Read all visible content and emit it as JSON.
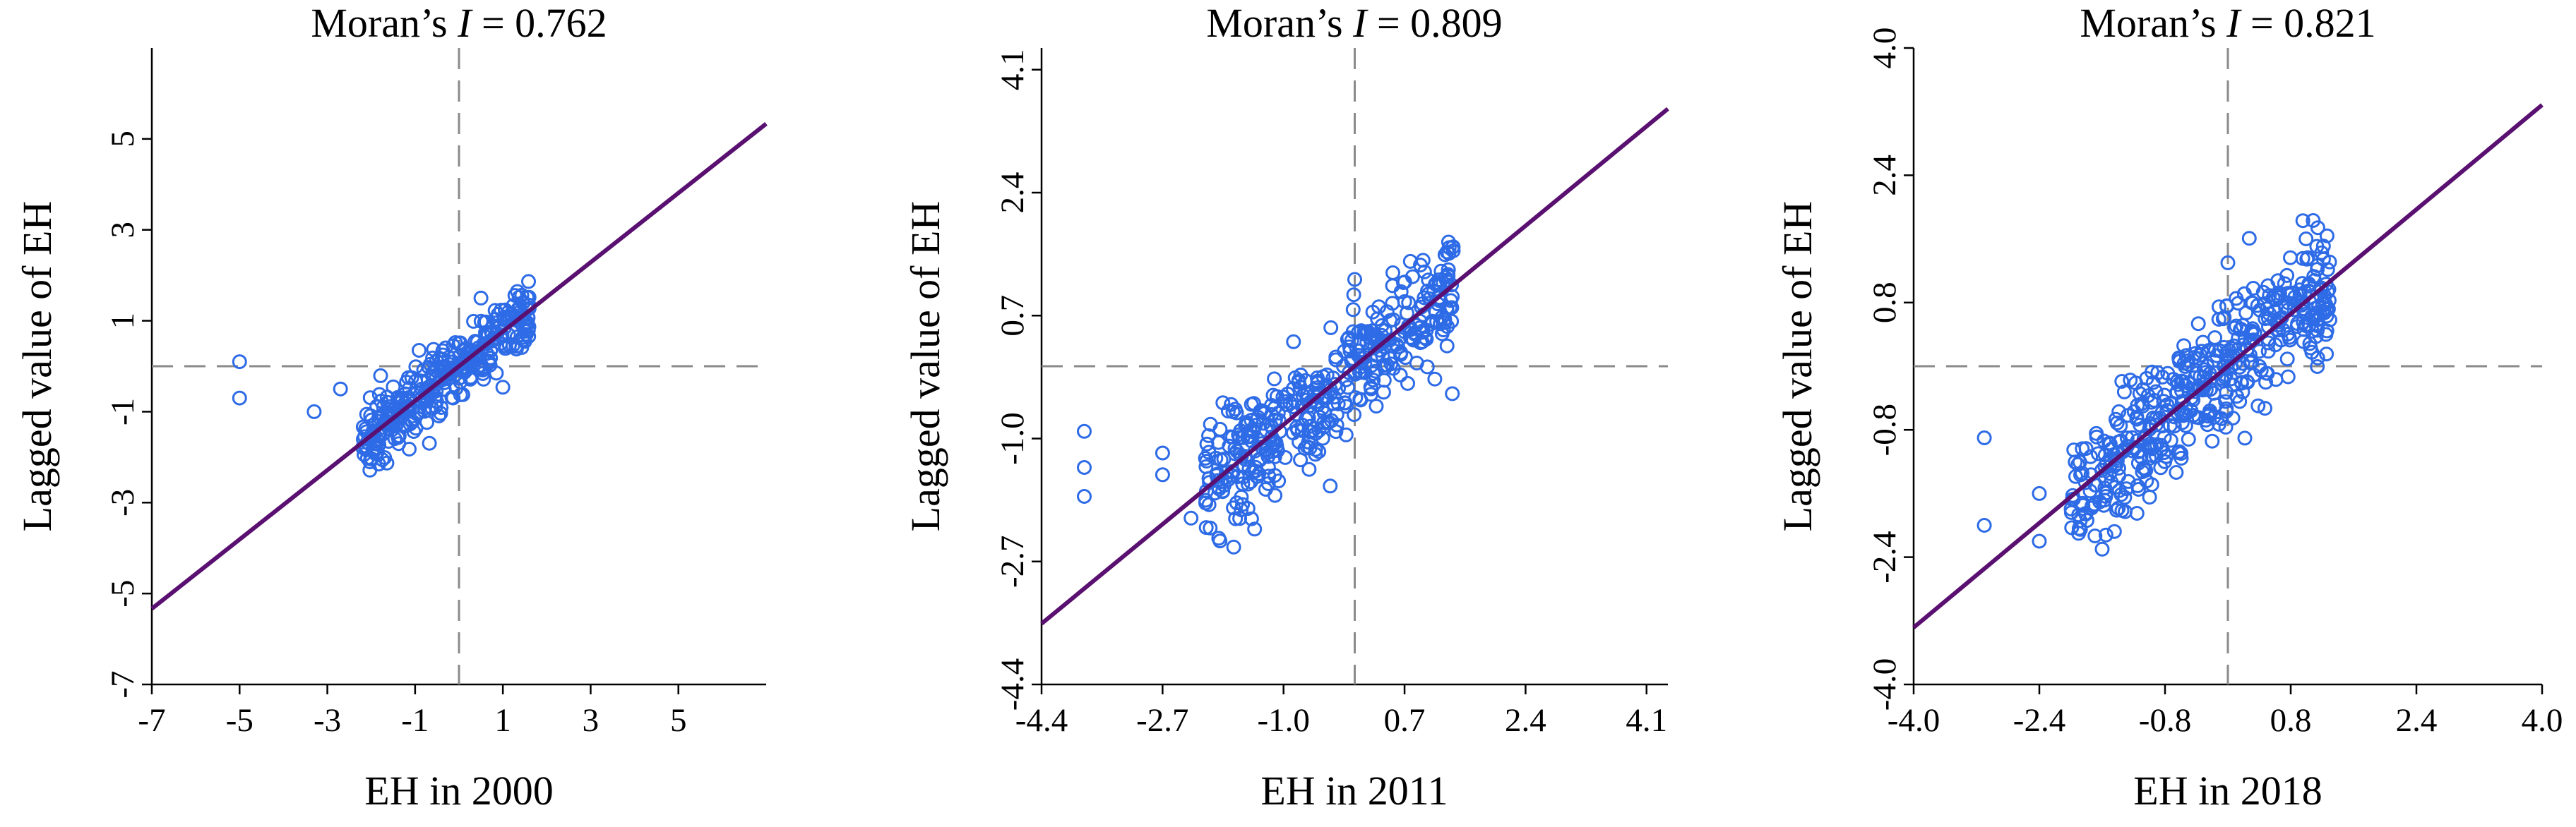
{
  "chart_data": [
    {
      "type": "scatter",
      "title_prefix": "Moran’s ",
      "title_stat": "I",
      "title_value": " = 0.762",
      "xlabel": "EH in 2000",
      "ylabel": "Lagged value of EH",
      "xlim": [
        -7,
        7
      ],
      "ylim": [
        -7,
        7
      ],
      "xticks": [
        -7,
        -5,
        -3,
        -1,
        1,
        3,
        5
      ],
      "xtick_labels": [
        "-7",
        "-5",
        "-3",
        "-1",
        "1",
        "3",
        "5"
      ],
      "yticks": [
        -7,
        -5,
        -3,
        -1,
        1,
        3,
        5
      ],
      "ytick_labels": [
        "-7",
        "-5",
        "-3",
        "-1",
        "1",
        "3",
        "5"
      ],
      "reference_x": 0,
      "reference_y": 0,
      "slope": 0.762,
      "cloud": {
        "xmin": -2.2,
        "xmax": 1.6,
        "spread": 0.35,
        "count": 340
      },
      "outliers": [
        {
          "x": -5.0,
          "y": 0.1
        },
        {
          "x": -5.0,
          "y": -0.7
        },
        {
          "x": -3.3,
          "y": -1.0
        },
        {
          "x": -2.7,
          "y": -0.5
        },
        {
          "x": 0.5,
          "y": 1.5
        }
      ],
      "marker_color": "#2E6BE6",
      "line_color": "#5A1070"
    },
    {
      "type": "scatter",
      "title_prefix": "Moran’s ",
      "title_stat": "I",
      "title_value": " = 0.809",
      "xlabel": "EH in 2011",
      "ylabel": "Lagged value of EH",
      "xlim": [
        -4.4,
        4.4
      ],
      "ylim": [
        -4.4,
        4.4
      ],
      "xticks": [
        -4.4,
        -2.7,
        -1.0,
        0.7,
        2.4,
        4.1
      ],
      "xtick_labels": [
        "-4.4",
        "-2.7",
        "-1.0",
        "0.7",
        "2.4",
        "4.1"
      ],
      "yticks": [
        -4.4,
        -2.7,
        -1.0,
        0.7,
        2.4,
        4.1
      ],
      "ytick_labels": [
        "-4.4",
        "-2.7",
        "-1.0",
        "0.7",
        "2.4",
        "4.1"
      ],
      "reference_x": 0,
      "reference_y": 0,
      "slope": 0.809,
      "cloud": {
        "xmin": -2.1,
        "xmax": 1.4,
        "spread": 0.42,
        "count": 420
      },
      "outliers": [
        {
          "x": -3.8,
          "y": -0.9
        },
        {
          "x": -3.8,
          "y": -1.4
        },
        {
          "x": -3.8,
          "y": -1.8
        },
        {
          "x": -2.7,
          "y": -1.2
        },
        {
          "x": -2.7,
          "y": -1.5
        },
        {
          "x": -2.3,
          "y": -2.1
        },
        {
          "x": -1.7,
          "y": -2.5
        },
        {
          "x": 0.0,
          "y": 1.2
        }
      ],
      "marker_color": "#2E6BE6",
      "line_color": "#5A1070"
    },
    {
      "type": "scatter",
      "title_prefix": "Moran’s ",
      "title_stat": "I",
      "title_value": " = 0.821",
      "xlabel": "EH in 2018",
      "ylabel": "Lagged value of EH",
      "xlim": [
        -4.0,
        4.0
      ],
      "ylim": [
        -4.0,
        4.0
      ],
      "xticks": [
        -4.0,
        -2.4,
        -0.8,
        0.8,
        2.4,
        4.0
      ],
      "xtick_labels": [
        "-4.0",
        "-2.4",
        "-0.8",
        "0.8",
        "2.4",
        "4.0"
      ],
      "yticks": [
        -4.0,
        -2.4,
        -0.8,
        0.8,
        2.4,
        4.0
      ],
      "ytick_labels": [
        "-4.0",
        "-2.4",
        "-0.8",
        "0.8",
        "2.4",
        "4.0"
      ],
      "reference_x": 0,
      "reference_y": 0,
      "slope": 0.821,
      "cloud": {
        "xmin": -2.0,
        "xmax": 1.3,
        "spread": 0.4,
        "count": 460
      },
      "outliers": [
        {
          "x": -3.1,
          "y": -0.9
        },
        {
          "x": -3.1,
          "y": -2.0
        },
        {
          "x": -2.4,
          "y": -1.6
        },
        {
          "x": -2.4,
          "y": -2.2
        },
        {
          "x": -1.9,
          "y": -2.1
        },
        {
          "x": -1.6,
          "y": -2.3
        },
        {
          "x": 0.0,
          "y": 1.3
        }
      ],
      "marker_color": "#2E6BE6",
      "line_color": "#5A1070"
    }
  ]
}
